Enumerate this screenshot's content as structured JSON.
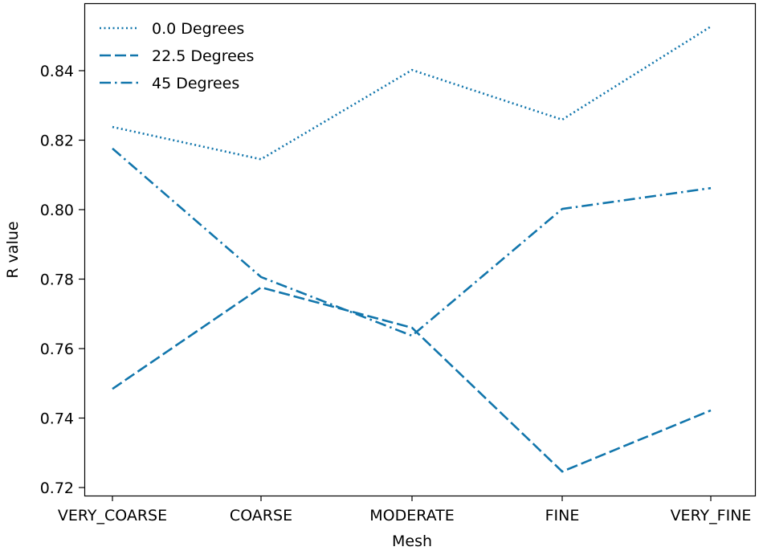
{
  "chart_data": {
    "type": "line",
    "xlabel": "Mesh",
    "ylabel": "R value",
    "categories": [
      "VERY_COARSE",
      "COARSE",
      "MODERATE",
      "FINE",
      "VERY_FINE"
    ],
    "ylim": [
      0.715,
      0.857
    ],
    "yticks": [
      "0.72",
      "0.74",
      "0.76",
      "0.78",
      "0.80",
      "0.82",
      "0.84"
    ],
    "grid": false,
    "legend_position": "top-left",
    "line_color": "#1276ac",
    "series": [
      {
        "name": "0.0 Degrees",
        "style": "dotted",
        "values": [
          0.8238,
          0.8145,
          0.8402,
          0.8259,
          0.8527
        ]
      },
      {
        "name": "22.5 Degrees",
        "style": "dashed",
        "values": [
          0.7484,
          0.7776,
          0.766,
          0.7246,
          0.7422
        ]
      },
      {
        "name": "45 Degrees",
        "style": "dashdot",
        "values": [
          0.8176,
          0.7806,
          0.7637,
          0.8002,
          0.8062
        ]
      }
    ]
  }
}
